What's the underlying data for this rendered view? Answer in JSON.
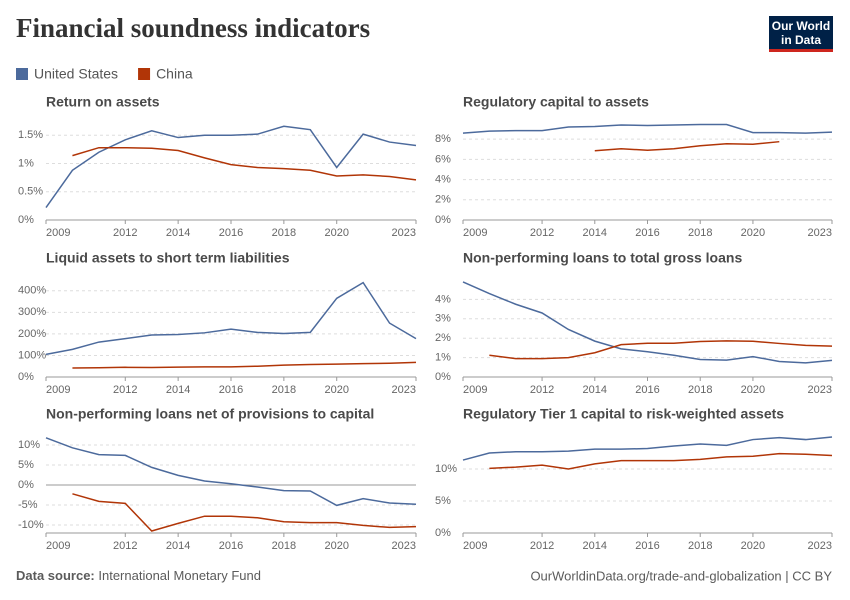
{
  "title": "Financial soundness indicators",
  "logo": [
    "Our World",
    "in Data"
  ],
  "source_label": "Data source:",
  "source": "International Monetary Fund",
  "footer_url": "OurWorldinData.org/trade-and-globalization | CC BY",
  "chart_data": [
    {
      "type": "line",
      "title": "Return on assets",
      "x": [
        2009,
        2010,
        2011,
        2012,
        2013,
        2014,
        2015,
        2016,
        2017,
        2018,
        2019,
        2020,
        2021,
        2022,
        2023
      ],
      "xlim": [
        2009,
        2023
      ],
      "xticks": [
        2009,
        2012,
        2014,
        2016,
        2018,
        2020,
        2023
      ],
      "ylim": [
        0,
        1.7
      ],
      "yticks": [
        {
          "value": 0,
          "label": "0%"
        },
        {
          "value": 0.5,
          "label": "0.5%"
        },
        {
          "value": 1,
          "label": "1%"
        },
        {
          "value": 1.5,
          "label": "1.5%"
        }
      ],
      "grid": true,
      "series": [
        {
          "name": "United States",
          "color": "#4c6a9c",
          "values": [
            0.22,
            0.88,
            1.2,
            1.42,
            1.58,
            1.46,
            1.5,
            1.5,
            1.52,
            1.66,
            1.6,
            0.93,
            1.52,
            1.38,
            1.32
          ]
        },
        {
          "name": "China",
          "color": "#b13507",
          "values": [
            null,
            1.14,
            1.28,
            1.28,
            1.27,
            1.23,
            1.1,
            0.98,
            0.93,
            0.91,
            0.88,
            0.78,
            0.8,
            0.77,
            0.71
          ]
        }
      ]
    },
    {
      "type": "line",
      "title": "Regulatory capital to assets",
      "x": [
        2009,
        2010,
        2011,
        2012,
        2013,
        2014,
        2015,
        2016,
        2017,
        2018,
        2019,
        2020,
        2021,
        2022,
        2023
      ],
      "xlim": [
        2009,
        2023
      ],
      "xticks": [
        2009,
        2012,
        2014,
        2016,
        2018,
        2020,
        2023
      ],
      "ylim": [
        0,
        9.5
      ],
      "yticks": [
        {
          "value": 0,
          "label": "0%"
        },
        {
          "value": 2,
          "label": "2%"
        },
        {
          "value": 4,
          "label": "4%"
        },
        {
          "value": 6,
          "label": "6%"
        },
        {
          "value": 8,
          "label": "8%"
        }
      ],
      "grid": true,
      "series": [
        {
          "name": "United States",
          "color": "#4c6a9c",
          "values": [
            8.6,
            8.8,
            8.85,
            8.85,
            9.2,
            9.25,
            9.4,
            9.35,
            9.4,
            9.45,
            9.45,
            8.65,
            8.65,
            8.6,
            8.7
          ]
        },
        {
          "name": "China",
          "color": "#b13507",
          "values": [
            null,
            null,
            null,
            null,
            null,
            6.85,
            7.05,
            6.9,
            7.05,
            7.35,
            7.55,
            7.5,
            7.75,
            null,
            null
          ]
        }
      ]
    },
    {
      "type": "line",
      "title": "Liquid assets to short term liabilities",
      "x": [
        2009,
        2010,
        2011,
        2012,
        2013,
        2014,
        2015,
        2016,
        2017,
        2018,
        2019,
        2020,
        2021,
        2022,
        2023
      ],
      "xlim": [
        2009,
        2023
      ],
      "xticks": [
        2009,
        2012,
        2014,
        2016,
        2018,
        2020,
        2023
      ],
      "ylim": [
        0,
        450
      ],
      "yticks": [
        {
          "value": 0,
          "label": "0%"
        },
        {
          "value": 100,
          "label": "100%"
        },
        {
          "value": 200,
          "label": "200%"
        },
        {
          "value": 300,
          "label": "300%"
        },
        {
          "value": 400,
          "label": "400%"
        }
      ],
      "grid": true,
      "series": [
        {
          "name": "United States",
          "color": "#4c6a9c",
          "values": [
            105,
            128,
            162,
            178,
            195,
            197,
            205,
            222,
            207,
            202,
            207,
            365,
            438,
            250,
            178
          ]
        },
        {
          "name": "China",
          "color": "#b13507",
          "values": [
            null,
            42,
            43,
            45,
            44,
            46,
            47,
            47,
            50,
            55,
            58,
            60,
            62,
            64,
            68
          ]
        }
      ]
    },
    {
      "type": "line",
      "title": "Non-performing loans to total gross loans",
      "x": [
        2009,
        2010,
        2011,
        2012,
        2013,
        2014,
        2015,
        2016,
        2017,
        2018,
        2019,
        2020,
        2021,
        2022,
        2023
      ],
      "xlim": [
        2009,
        2023
      ],
      "xticks": [
        2009,
        2012,
        2014,
        2016,
        2018,
        2020,
        2023
      ],
      "ylim": [
        0,
        5
      ],
      "yticks": [
        {
          "value": 0,
          "label": "0%"
        },
        {
          "value": 1,
          "label": "1%"
        },
        {
          "value": 2,
          "label": "2%"
        },
        {
          "value": 3,
          "label": "3%"
        },
        {
          "value": 4,
          "label": "4%"
        }
      ],
      "grid": true,
      "series": [
        {
          "name": "United States",
          "color": "#4c6a9c",
          "values": [
            4.9,
            4.3,
            3.75,
            3.3,
            2.45,
            1.85,
            1.45,
            1.3,
            1.12,
            0.9,
            0.87,
            1.05,
            0.8,
            0.73,
            0.86
          ]
        },
        {
          "name": "China",
          "color": "#b13507",
          "values": [
            null,
            1.12,
            0.95,
            0.95,
            1.0,
            1.25,
            1.67,
            1.74,
            1.74,
            1.83,
            1.86,
            1.84,
            1.73,
            1.63,
            1.59
          ]
        }
      ]
    },
    {
      "type": "line",
      "title": "Non-performing loans net of provisions to capital",
      "x": [
        2009,
        2010,
        2011,
        2012,
        2013,
        2014,
        2015,
        2016,
        2017,
        2018,
        2019,
        2020,
        2021,
        2022,
        2023
      ],
      "xlim": [
        2009,
        2023
      ],
      "xticks": [
        2009,
        2012,
        2014,
        2016,
        2018,
        2020,
        2023
      ],
      "ylim": [
        -12,
        12
      ],
      "yticks": [
        {
          "value": -10,
          "label": "-10%"
        },
        {
          "value": -5,
          "label": "-5%"
        },
        {
          "value": 0,
          "label": "0%"
        },
        {
          "value": 5,
          "label": "5%"
        },
        {
          "value": 10,
          "label": "10%"
        }
      ],
      "grid": true,
      "series": [
        {
          "name": "United States",
          "color": "#4c6a9c",
          "values": [
            11.8,
            9.3,
            7.6,
            7.4,
            4.4,
            2.4,
            1.0,
            0.3,
            -0.5,
            -1.4,
            -1.5,
            -5.1,
            -3.4,
            -4.5,
            -4.8
          ]
        },
        {
          "name": "China",
          "color": "#b13507",
          "values": [
            null,
            -2.2,
            -4.1,
            -4.6,
            -11.5,
            -9.6,
            -7.8,
            -7.8,
            -8.2,
            -9.2,
            -9.4,
            -9.4,
            -10.1,
            -10.6,
            -10.4
          ]
        }
      ]
    },
    {
      "type": "line",
      "title": "Regulatory Tier 1 capital to risk-weighted assets",
      "x": [
        2009,
        2010,
        2011,
        2012,
        2013,
        2014,
        2015,
        2016,
        2017,
        2018,
        2019,
        2020,
        2021,
        2022,
        2023
      ],
      "xlim": [
        2009,
        2023
      ],
      "xticks": [
        2009,
        2012,
        2014,
        2016,
        2018,
        2020,
        2023
      ],
      "ylim": [
        0,
        15
      ],
      "yticks": [
        {
          "value": 0,
          "label": "0%"
        },
        {
          "value": 5,
          "label": "5%"
        },
        {
          "value": 10,
          "label": "10%"
        }
      ],
      "grid": true,
      "series": [
        {
          "name": "United States",
          "color": "#4c6a9c",
          "values": [
            11.4,
            12.5,
            12.7,
            12.7,
            12.8,
            13.1,
            13.1,
            13.2,
            13.6,
            13.9,
            13.7,
            14.6,
            14.9,
            14.6,
            15.0
          ]
        },
        {
          "name": "China",
          "color": "#b13507",
          "values": [
            null,
            10.1,
            10.3,
            10.6,
            10.0,
            10.8,
            11.3,
            11.3,
            11.3,
            11.5,
            11.9,
            12.0,
            12.4,
            12.3,
            12.1
          ]
        }
      ]
    }
  ]
}
